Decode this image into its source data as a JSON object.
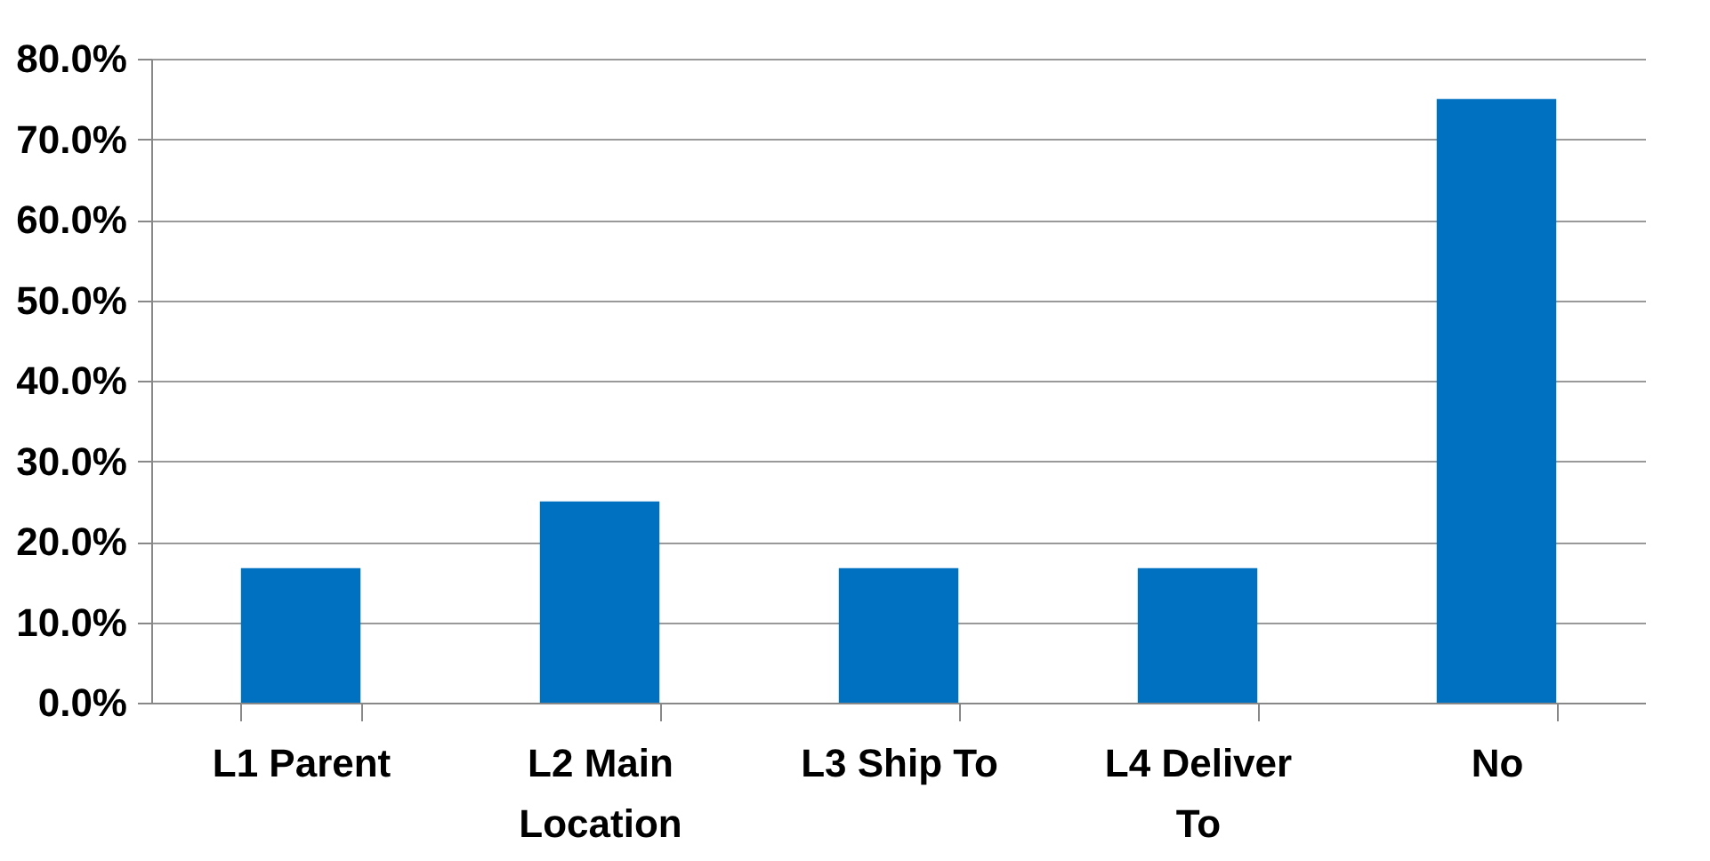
{
  "chart_data": {
    "type": "bar",
    "categories": [
      "L1 Parent",
      "L2 Main Location",
      "L3 Ship To",
      "L4 Deliver To",
      "No"
    ],
    "series": [
      {
        "color": "#0070c0",
        "values": [
          16.7,
          25,
          16.7,
          16.7,
          75
        ]
      }
    ],
    "ylim": [
      0,
      80
    ],
    "yticks": [
      {
        "value": 0,
        "label": "0.0%"
      },
      {
        "value": 10,
        "label": "10.0%"
      },
      {
        "value": 20,
        "label": "20.0%"
      },
      {
        "value": 30,
        "label": "30.0%"
      },
      {
        "value": 40,
        "label": "40.0%"
      },
      {
        "value": 50,
        "label": "50.0%"
      },
      {
        "value": 60,
        "label": "60.0%"
      },
      {
        "value": 70,
        "label": "70.0%"
      },
      {
        "value": 80,
        "label": "80.0%"
      }
    ],
    "grid": "y",
    "legend": false
  }
}
